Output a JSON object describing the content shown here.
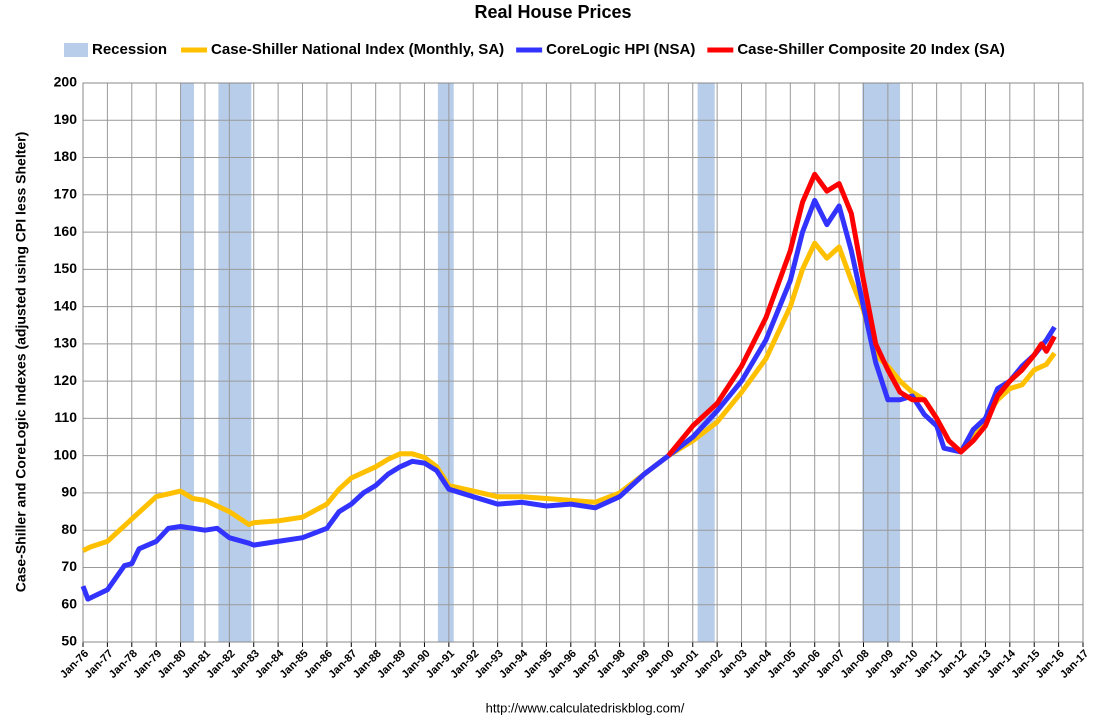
{
  "chart_data": {
    "type": "line",
    "title": "Real House Prices",
    "ylabel": "Case-Shiller and CoreLogic Indexes (adjusted using CPI less Shelter)",
    "source": "http://www.calculatedriskblog.com/",
    "recession": {
      "name": "Recession",
      "color": "#b7cdea",
      "periods": [
        [
          1980.0,
          1980.55
        ],
        [
          1981.55,
          1982.9
        ],
        [
          1990.55,
          1991.2
        ],
        [
          2001.2,
          2001.9
        ],
        [
          2007.95,
          2009.5
        ]
      ]
    },
    "series": [
      {
        "name": "Case-Shiller National Index (Monthly, SA)",
        "color": "#ffc000",
        "x": [
          1976,
          1976.3,
          1977,
          1978,
          1979,
          1980,
          1980.5,
          1981,
          1982,
          1982.8,
          1983,
          1984,
          1985,
          1986,
          1986.5,
          1987,
          1988,
          1988.5,
          1989,
          1989.5,
          1990,
          1990.5,
          1991,
          1992,
          1993,
          1994,
          1995,
          1996,
          1997,
          1998,
          1999,
          2000,
          2001,
          2002,
          2003,
          2004,
          2005,
          2005.5,
          2006,
          2006.5,
          2007,
          2007.5,
          2008,
          2008.5,
          2009,
          2009.5,
          2010,
          2010.5,
          2011,
          2011.5,
          2012,
          2012.5,
          2013,
          2013.5,
          2014,
          2014.5,
          2015,
          2015.5,
          2015.83
        ],
        "values": [
          74.5,
          75.5,
          77,
          83,
          89,
          90.5,
          88.5,
          88,
          85,
          81.5,
          82,
          82.5,
          83.5,
          87,
          91,
          94,
          97,
          99,
          100.5,
          100.5,
          99.5,
          97,
          92,
          90.5,
          89,
          89,
          88.5,
          88,
          87.5,
          90,
          95,
          100,
          104,
          109,
          117,
          126,
          140,
          150,
          157,
          153,
          156,
          147,
          139,
          127,
          124,
          120,
          117,
          115,
          110,
          104,
          101,
          106,
          110,
          115,
          118,
          119,
          123,
          124.5,
          127.5
        ]
      },
      {
        "name": "CoreLogic HPI (NSA)",
        "color": "#3333ff",
        "x": [
          1976,
          1976.2,
          1977,
          1977.7,
          1978,
          1978.3,
          1979,
          1979.5,
          1980,
          1981,
          1981.5,
          1982,
          1982.8,
          1983,
          1984,
          1985,
          1986,
          1986.5,
          1987,
          1987.5,
          1988,
          1988.5,
          1989,
          1989.5,
          1990,
          1990.5,
          1991,
          1992,
          1993,
          1994,
          1995,
          1996,
          1997,
          1998,
          1999,
          2000,
          2001,
          2002,
          2003,
          2004,
          2005,
          2005.5,
          2006,
          2006.5,
          2007,
          2007.5,
          2008,
          2008.5,
          2009,
          2009.5,
          2010,
          2010.5,
          2011,
          2011.3,
          2012,
          2012.5,
          2013,
          2013.5,
          2014,
          2014.5,
          2015,
          2015.5,
          2015.83
        ],
        "values": [
          65,
          61.5,
          64,
          70.5,
          71,
          75,
          77,
          80.5,
          81,
          80,
          80.5,
          78,
          76.5,
          76,
          77,
          78,
          80.5,
          85,
          87,
          90,
          92,
          95,
          97,
          98.5,
          98,
          96,
          91,
          89,
          87,
          87.5,
          86.5,
          87,
          86,
          89,
          95,
          100,
          105,
          112,
          120,
          131,
          147,
          160,
          168.5,
          162,
          167,
          155,
          140,
          125,
          115,
          115,
          116,
          111,
          108,
          102,
          101,
          107,
          110,
          118,
          120,
          124,
          127,
          131,
          134.5
        ]
      },
      {
        "name": "Case-Shiller Composite 20 Index (SA)",
        "color": "#ff0000",
        "x": [
          2000,
          2001,
          2002,
          2003,
          2004,
          2005,
          2005.5,
          2006,
          2006.5,
          2007,
          2007.5,
          2008,
          2008.5,
          2009,
          2009.5,
          2010,
          2010.5,
          2011,
          2011.5,
          2012,
          2012.5,
          2013,
          2013.5,
          2014,
          2014.5,
          2015,
          2015.3,
          2015.5,
          2015.83
        ],
        "values": [
          100,
          108,
          114,
          124,
          137,
          155,
          168,
          175.5,
          171,
          173,
          165,
          147,
          130,
          123,
          117,
          115,
          115,
          110,
          104,
          101,
          104,
          108,
          116,
          120,
          123,
          127,
          130,
          128,
          132
        ]
      }
    ],
    "xlim": [
      1976,
      2017
    ],
    "xticks": [
      {
        "value": 1976,
        "label": "Jan-76"
      },
      {
        "value": 1977,
        "label": "Jan-77"
      },
      {
        "value": 1978,
        "label": "Jan-78"
      },
      {
        "value": 1979,
        "label": "Jan-79"
      },
      {
        "value": 1980,
        "label": "Jan-80"
      },
      {
        "value": 1981,
        "label": "Jan-81"
      },
      {
        "value": 1982,
        "label": "Jan-82"
      },
      {
        "value": 1983,
        "label": "Jan-83"
      },
      {
        "value": 1984,
        "label": "Jan-84"
      },
      {
        "value": 1985,
        "label": "Jan-85"
      },
      {
        "value": 1986,
        "label": "Jan-86"
      },
      {
        "value": 1987,
        "label": "Jan-87"
      },
      {
        "value": 1988,
        "label": "Jan-88"
      },
      {
        "value": 1989,
        "label": "Jan-89"
      },
      {
        "value": 1990,
        "label": "Jan-90"
      },
      {
        "value": 1991,
        "label": "Jan-91"
      },
      {
        "value": 1992,
        "label": "Jan-92"
      },
      {
        "value": 1993,
        "label": "Jan-93"
      },
      {
        "value": 1994,
        "label": "Jan-94"
      },
      {
        "value": 1995,
        "label": "Jan-95"
      },
      {
        "value": 1996,
        "label": "Jan-96"
      },
      {
        "value": 1997,
        "label": "Jan-97"
      },
      {
        "value": 1998,
        "label": "Jan-98"
      },
      {
        "value": 1999,
        "label": "Jan-99"
      },
      {
        "value": 2000,
        "label": "Jan-00"
      },
      {
        "value": 2001,
        "label": "Jan-01"
      },
      {
        "value": 2002,
        "label": "Jan-02"
      },
      {
        "value": 2003,
        "label": "Jan-03"
      },
      {
        "value": 2004,
        "label": "Jan-04"
      },
      {
        "value": 2005,
        "label": "Jan-05"
      },
      {
        "value": 2006,
        "label": "Jan-06"
      },
      {
        "value": 2007,
        "label": "Jan-07"
      },
      {
        "value": 2008,
        "label": "Jan-08"
      },
      {
        "value": 2009,
        "label": "Jan-09"
      },
      {
        "value": 2010,
        "label": "Jan-10"
      },
      {
        "value": 2011,
        "label": "Jan-11"
      },
      {
        "value": 2012,
        "label": "Jan-12"
      },
      {
        "value": 2013,
        "label": "Jan-13"
      },
      {
        "value": 2014,
        "label": "Jan-14"
      },
      {
        "value": 2015,
        "label": "Jan-15"
      },
      {
        "value": 2016,
        "label": "Jan-16"
      },
      {
        "value": 2017,
        "label": "Jan-17"
      }
    ],
    "ylim": [
      50,
      200
    ],
    "yticks": [
      50,
      60,
      70,
      80,
      90,
      100,
      110,
      120,
      130,
      140,
      150,
      160,
      170,
      180,
      190,
      200
    ],
    "grid": true
  }
}
